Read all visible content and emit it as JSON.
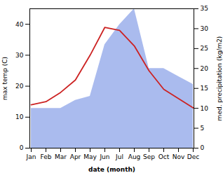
{
  "chart_data": {
    "type": "line",
    "xlabel": "date (month)",
    "ylabel": "max temp (C)",
    "y2label": "med. precipitation (kg/m2)",
    "categories": [
      "Jan",
      "Feb",
      "Mar",
      "Apr",
      "May",
      "Jun",
      "Jul",
      "Aug",
      "Sep",
      "Oct",
      "Nov",
      "Dec"
    ],
    "series": [
      {
        "type": "area",
        "axis": "y2",
        "color": "#aabbee",
        "values": [
          10,
          10,
          10,
          12,
          13,
          26,
          31,
          35,
          20,
          20,
          18,
          16
        ]
      },
      {
        "type": "line",
        "color": "#cc2222",
        "values": [
          14,
          15,
          18,
          22,
          30,
          39,
          38.0,
          33,
          25,
          19,
          16,
          13
        ]
      }
    ],
    "ylim": [
      0,
      45
    ],
    "yticks": [
      0,
      10,
      20,
      30,
      40
    ],
    "y2lim": [
      0,
      35
    ],
    "y2ticks": [
      0,
      5,
      10,
      15,
      20,
      25,
      30,
      35
    ],
    "grid": false
  }
}
